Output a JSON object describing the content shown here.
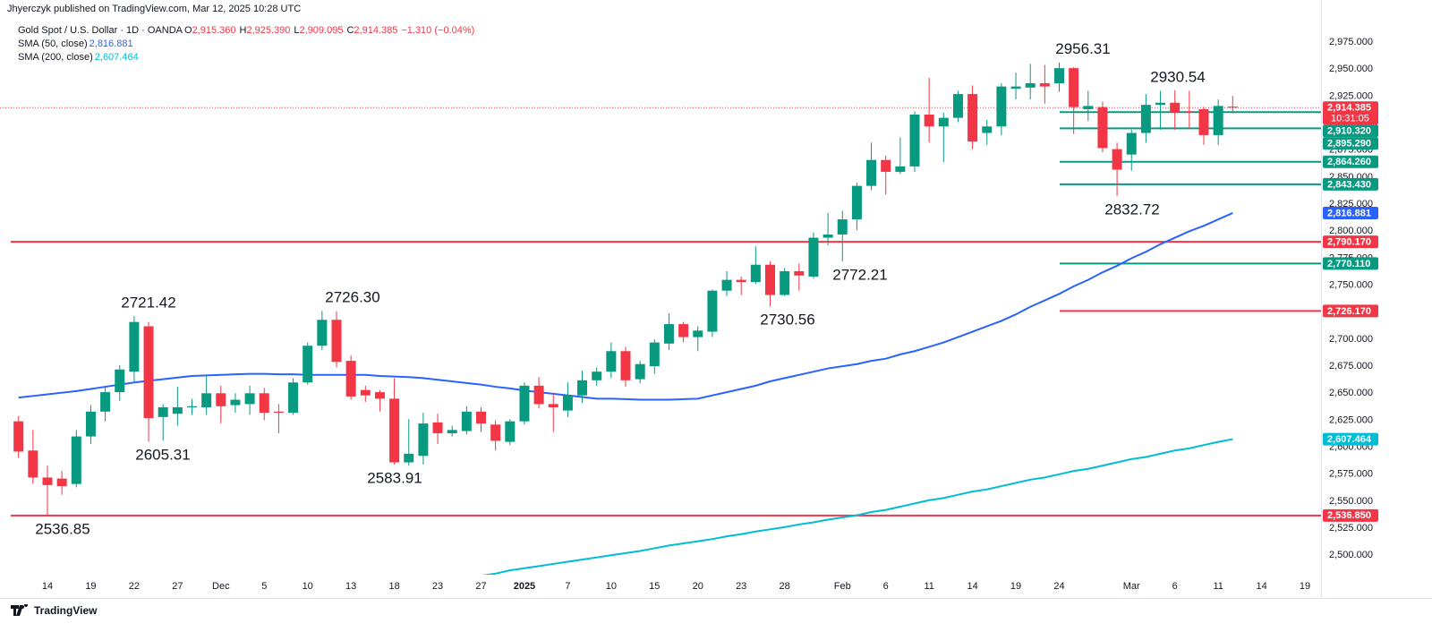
{
  "header": "Jhyerczyk published on TradingView.com, Mar 12, 2025 10:28 UTC",
  "footer": "TradingView",
  "chart_data": {
    "type": "candlestick",
    "title": "Gold Spot / U.S. Dollar · 1D · OANDA",
    "legend": {
      "ohlc": [
        {
          "key": "O",
          "value": "2,915.360"
        },
        {
          "key": "H",
          "value": "2,925.390"
        },
        {
          "key": "L",
          "value": "2,909.095"
        },
        {
          "key": "C",
          "value": "2,914.385"
        }
      ],
      "change": "−1.310 (−0.04%)"
    },
    "up_color": "#089981",
    "down_color": "#f23645",
    "grid": false,
    "categories": [
      null,
      null,
      "14",
      null,
      null,
      "19",
      null,
      null,
      "22",
      null,
      null,
      "27",
      null,
      null,
      "Dec",
      null,
      null,
      "5",
      null,
      null,
      "10",
      null,
      null,
      "13",
      null,
      null,
      "18",
      null,
      null,
      "23",
      null,
      null,
      "27",
      null,
      null,
      "2025",
      null,
      null,
      "7",
      null,
      null,
      "10",
      null,
      null,
      "15",
      null,
      null,
      "20",
      null,
      null,
      "23",
      null,
      null,
      "28",
      null,
      null,
      null,
      "Feb",
      null,
      null,
      "6",
      null,
      null,
      "11",
      null,
      null,
      "14",
      null,
      null,
      "19",
      null,
      null,
      "24",
      null,
      null,
      null,
      null,
      "Mar",
      null,
      null,
      "6",
      null,
      null,
      "11",
      null,
      null,
      "14",
      null,
      null,
      "19"
    ],
    "open": [
      2624,
      2597,
      2572,
      2571,
      2566,
      2610,
      2633,
      2651,
      2670,
      2712,
      2628,
      2631,
      2637,
      2637,
      2650,
      2639,
      2640,
      2650,
      2633,
      2632,
      2660,
      2694,
      2718,
      2680,
      2653,
      2651,
      2645,
      2586,
      2592,
      2623,
      2613,
      2615,
      2633,
      2621,
      2605,
      2624,
      2657,
      2640,
      2634,
      2648,
      2662,
      2670,
      2689,
      2663,
      2675,
      2696,
      2714,
      2702,
      2707,
      2745,
      2755,
      2753,
      2769,
      2741,
      2763,
      2758,
      2794,
      2797,
      2811,
      2842,
      2866,
      2855,
      2860,
      2908,
      2897,
      2905,
      2927,
      2891,
      2897,
      2932,
      2933,
      2937,
      2937,
      2951,
      2913,
      2915,
      2876,
      2871,
      2891,
      2917,
      2919,
      2911,
      2913,
      2889,
      2915.36,
      null,
      null,
      null,
      null,
      null
    ],
    "high": [
      2629,
      2616,
      2583,
      2578,
      2616,
      2639,
      2656,
      2676,
      2721.42,
      2716,
      2640,
      2656,
      2645,
      2666,
      2657,
      2650,
      2657,
      2655,
      2640,
      2664,
      2697,
      2726.3,
      2726,
      2685,
      2657,
      2653,
      2664,
      2626,
      2632,
      2631,
      2620,
      2638,
      2637,
      2625,
      2626,
      2660,
      2665,
      2650,
      2660,
      2671,
      2674,
      2697,
      2693,
      2680,
      2700,
      2724,
      2716,
      2712,
      2746,
      2763,
      2758,
      2786,
      2772,
      2766,
      2770,
      2799,
      2817,
      2819,
      2845,
      2882,
      2870,
      2887,
      2911,
      2942,
      2910,
      2930,
      2935,
      2903,
      2937,
      2947,
      2955,
      2954,
      2956.31,
      2952,
      2930,
      2920,
      2882,
      2894,
      2927,
      2930,
      2930.54,
      2930,
      2915,
      2922,
      2925.39,
      null,
      null,
      null,
      null,
      null
    ],
    "low": [
      2590,
      2566,
      2536.85,
      2556,
      2563,
      2603,
      2624,
      2643,
      2660,
      2605.31,
      2606,
      2620,
      2630,
      2630,
      2622,
      2632,
      2630,
      2625,
      2613,
      2630,
      2658,
      2690,
      2674,
      2644,
      2642,
      2633,
      2583.91,
      2583,
      2584,
      2603,
      2610,
      2612,
      2614,
      2597,
      2602,
      2621,
      2636,
      2614,
      2628,
      2641,
      2657,
      2664,
      2656,
      2659,
      2668,
      2690,
      2697,
      2689,
      2702,
      2740,
      2741,
      2751,
      2730.56,
      2740,
      2745,
      2756,
      2787,
      2772.21,
      2801,
      2838,
      2834,
      2853,
      2855,
      2882,
      2864,
      2901,
      2876,
      2880,
      2889,
      2922,
      2922,
      2918,
      2929,
      2890,
      2902,
      2873,
      2832.72,
      2856,
      2882,
      2894,
      2894,
      2895,
      2880,
      2880,
      2909.095,
      null,
      null,
      null,
      null,
      null
    ],
    "close": [
      2596,
      2572,
      2565,
      2564,
      2610,
      2633,
      2651,
      2672,
      2716,
      2627,
      2637,
      2637,
      2638,
      2650,
      2638,
      2644,
      2650,
      2632,
      2632,
      2660,
      2694,
      2718,
      2679,
      2647,
      2648,
      2645,
      2586,
      2594,
      2622,
      2613,
      2616,
      2633,
      2622,
      2606,
      2624,
      2657,
      2640,
      2637,
      2648,
      2662,
      2670,
      2689,
      2662,
      2677,
      2697,
      2714,
      2702,
      2708,
      2745,
      2755,
      2753,
      2769,
      2741,
      2763,
      2759,
      2794,
      2797,
      2811,
      2842,
      2866,
      2855,
      2860,
      2908,
      2897,
      2905,
      2927,
      2883,
      2897,
      2934,
      2934,
      2937,
      2934,
      2951,
      2915,
      2916,
      2877,
      2857,
      2891,
      2917,
      2919,
      2910,
      2910,
      2889,
      2916,
      2914.385,
      null,
      null,
      null,
      null,
      null
    ],
    "series": [
      {
        "name": "SMA (50, close)",
        "color": "#2962ff",
        "legend_value": "2,816.881",
        "values": [
          2646,
          2647.5,
          2649,
          2650.5,
          2652,
          2654,
          2656,
          2658,
          2660,
          2661.5,
          2663,
          2664.5,
          2666,
          2666.5,
          2667,
          2667.5,
          2668,
          2668,
          2667.5,
          2667.5,
          2667,
          2667,
          2667,
          2667,
          2667,
          2666,
          2665.5,
          2665,
          2664,
          2662.5,
          2661,
          2659.5,
          2658,
          2656,
          2654.5,
          2652.5,
          2651,
          2649.5,
          2648,
          2646.5,
          2645,
          2645,
          2644.5,
          2644,
          2644,
          2644,
          2644.5,
          2645,
          2648,
          2651,
          2654,
          2657,
          2661,
          2664,
          2667,
          2670,
          2673,
          2675,
          2677,
          2680,
          2682,
          2686,
          2689,
          2693,
          2697,
          2702,
          2707,
          2712,
          2717,
          2723,
          2730,
          2736,
          2742,
          2749,
          2755,
          2762,
          2768,
          2775,
          2781,
          2788,
          2794,
          2800,
          2805,
          2811,
          2816.881,
          null,
          null,
          null,
          null,
          null
        ]
      },
      {
        "name": "SMA (200, close)",
        "color": "#00bcd4",
        "legend_value": "2,607.464",
        "values": [
          null,
          null,
          null,
          null,
          null,
          null,
          null,
          null,
          null,
          null,
          null,
          null,
          null,
          null,
          null,
          null,
          null,
          null,
          null,
          null,
          null,
          null,
          null,
          null,
          null,
          null,
          null,
          null,
          null,
          null,
          null,
          null,
          2481,
          2483,
          2486,
          2488,
          2490,
          2492,
          2494,
          2496,
          2498,
          2500,
          2502,
          2504,
          2506.5,
          2509,
          2511,
          2513,
          2515,
          2517.5,
          2519.5,
          2522,
          2524,
          2526,
          2528.5,
          2530.5,
          2533,
          2535,
          2537,
          2540,
          2542,
          2545,
          2548,
          2551,
          2553,
          2556,
          2559,
          2561,
          2564,
          2567,
          2570,
          2572,
          2575,
          2578,
          2580,
          2583,
          2586,
          2589,
          2591,
          2594,
          2597,
          2599,
          2602,
          2605,
          2607.464,
          null,
          null,
          null,
          null,
          null
        ]
      }
    ],
    "ylim": [
      2482,
      3000
    ],
    "yticks": [
      {
        "value": 2500,
        "label": "2,500.000"
      },
      {
        "value": 2525,
        "label": "2,525.000"
      },
      {
        "value": 2550,
        "label": "2,550.000"
      },
      {
        "value": 2575,
        "label": "2,575.000"
      },
      {
        "value": 2600,
        "label": "2,600.000"
      },
      {
        "value": 2625,
        "label": "2,625.000"
      },
      {
        "value": 2650,
        "label": "2,650.000"
      },
      {
        "value": 2675,
        "label": "2,675.000"
      },
      {
        "value": 2700,
        "label": "2,700.000"
      },
      {
        "value": 2725,
        "label": "2,725.000"
      },
      {
        "value": 2750,
        "label": "2,750.000"
      },
      {
        "value": 2775,
        "label": "2,775.000"
      },
      {
        "value": 2800,
        "label": "2,800.000"
      },
      {
        "value": 2825,
        "label": "2,825.000"
      },
      {
        "value": 2850,
        "label": "2,850.000"
      },
      {
        "value": 2875,
        "label": "2,875.000"
      },
      {
        "value": 2900,
        "label": "2,900.000"
      },
      {
        "value": 2925,
        "label": "2,925.000"
      },
      {
        "value": 2950,
        "label": "2,950.000"
      },
      {
        "value": 2975,
        "label": "2,975.000"
      }
    ],
    "levels": [
      {
        "value": 2914.385,
        "label": "2,914.385",
        "color": "#f23645",
        "line": "dotted",
        "countdown": "10:31:05"
      },
      {
        "value": 2910.32,
        "label": "2,910.320",
        "color": "#089981",
        "line": "partial"
      },
      {
        "value": 2895.29,
        "label": "2,895.290",
        "color": "#089981",
        "line": "partial"
      },
      {
        "value": 2864.26,
        "label": "2,864.260",
        "color": "#089981",
        "line": "partial"
      },
      {
        "value": 2843.43,
        "label": "2,843.430",
        "color": "#089981",
        "line": "partial"
      },
      {
        "value": 2816.881,
        "label": "2,816.881",
        "color": "#2962ff",
        "line": "none"
      },
      {
        "value": 2790.17,
        "label": "2,790.170",
        "color": "#f23645",
        "line": "full"
      },
      {
        "value": 2770.11,
        "label": "2,770.110",
        "color": "#089981",
        "line": "partial"
      },
      {
        "value": 2726.17,
        "label": "2,726.170",
        "color": "#f23645",
        "line": "partial"
      },
      {
        "value": 2607.464,
        "label": "2,607.464",
        "color": "#00bcd4",
        "line": "none"
      },
      {
        "value": 2536.85,
        "label": "2,536.850",
        "color": "#f23645",
        "line": "full"
      }
    ],
    "annotations": [
      {
        "value": 2956.31,
        "label": "2956.31",
        "position": "above"
      },
      {
        "value": 2930.54,
        "label": "2930.54",
        "position": "above"
      },
      {
        "value": 2832.72,
        "label": "2832.72",
        "position": "below"
      },
      {
        "value": 2772.21,
        "label": "2772.21",
        "position": "below"
      },
      {
        "value": 2730.56,
        "label": "2730.56",
        "position": "below"
      },
      {
        "value": 2726.3,
        "label": "2726.30",
        "position": "above"
      },
      {
        "value": 2721.42,
        "label": "2721.42",
        "position": "above"
      },
      {
        "value": 2605.31,
        "label": "2605.31",
        "position": "below"
      },
      {
        "value": 2583.91,
        "label": "2583.91",
        "position": "below"
      },
      {
        "value": 2536.85,
        "label": "2536.85",
        "position": "below"
      }
    ]
  }
}
